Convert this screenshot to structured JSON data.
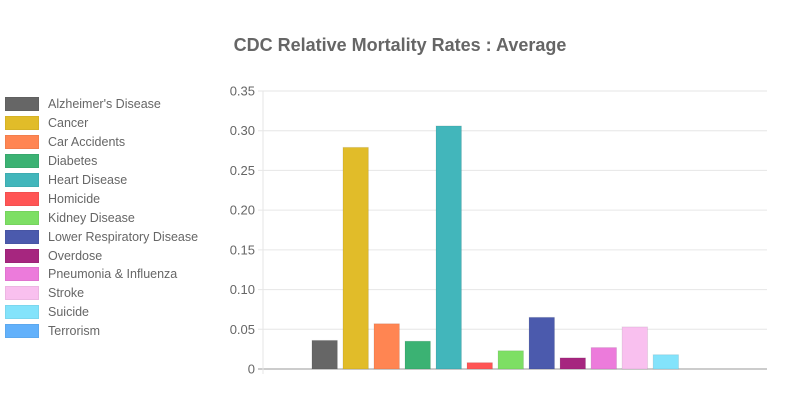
{
  "chart_data": {
    "type": "bar",
    "title": "CDC Relative Mortality Rates : Average",
    "xlabel": "",
    "ylabel": "",
    "ylim": [
      0,
      0.35
    ],
    "yticks": [
      "0",
      "0.05",
      "0.10",
      "0.15",
      "0.20",
      "0.25",
      "0.30",
      "0.35"
    ],
    "grid": true,
    "legend_position": "left",
    "series": [
      {
        "name": "Alzheimer's Disease",
        "value": 0.036,
        "color": "#666666"
      },
      {
        "name": "Cancer",
        "value": 0.279,
        "color": "#e1bc29"
      },
      {
        "name": "Car Accidents",
        "value": 0.057,
        "color": "#ff8552"
      },
      {
        "name": "Diabetes",
        "value": 0.035,
        "color": "#3bb273"
      },
      {
        "name": "Heart Disease",
        "value": 0.306,
        "color": "#42b6bb"
      },
      {
        "name": "Homicide",
        "value": 0.008,
        "color": "#ff5555"
      },
      {
        "name": "Kidney Disease",
        "value": 0.023,
        "color": "#7ddf64"
      },
      {
        "name": "Lower Respiratory Disease",
        "value": 0.065,
        "color": "#4b5aad"
      },
      {
        "name": "Overdose",
        "value": 0.014,
        "color": "#a6267f"
      },
      {
        "name": "Pneumonia & Influenza",
        "value": 0.027,
        "color": "#ec7bdb"
      },
      {
        "name": "Stroke",
        "value": 0.053,
        "color": "#f9c0ef"
      },
      {
        "name": "Suicide",
        "value": 0.018,
        "color": "#83e3fb"
      },
      {
        "name": "Terrorism",
        "value": 0.0,
        "color": "#62b1fb"
      }
    ]
  }
}
